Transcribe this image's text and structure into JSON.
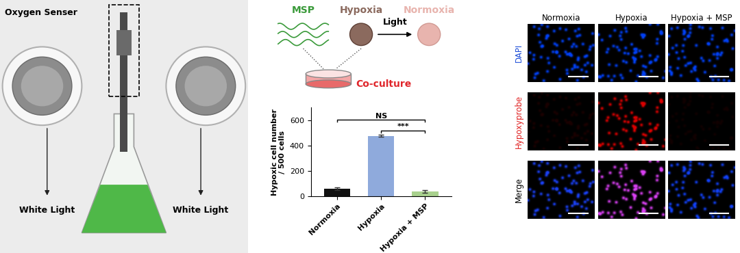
{
  "photo": {
    "label": "Oxygen Senser",
    "light_labels": [
      "White Light",
      "White Light"
    ]
  },
  "schematic": {
    "agent": {
      "text": "MSP",
      "color": "#3a9a3a"
    },
    "start": {
      "text": "Hypoxia",
      "color": "#8b6a5e"
    },
    "end": {
      "text": "Normoxia",
      "color": "#e8b4ae"
    },
    "arrow_label": "Light",
    "dish_label": {
      "text": "Co-culture",
      "color": "#e0262b"
    }
  },
  "chart_data": {
    "type": "bar",
    "categories": [
      "Normoxia",
      "Hypoxia",
      "Hypoxia + MSP"
    ],
    "values": [
      60,
      475,
      35
    ],
    "errors": [
      10,
      8,
      12
    ],
    "colors": [
      "#111111",
      "#8faadc",
      "#a9d18e"
    ],
    "y_label": "Hypoxic cell number\n/ 500 cells",
    "ylim": [
      0,
      700
    ],
    "yticks": [
      0,
      200,
      400,
      600
    ],
    "grid": false,
    "significance": [
      {
        "from": "Hypoxia",
        "to": "Hypoxia + MSP",
        "label": "***"
      },
      {
        "from": "Normoxia",
        "to": "Hypoxia + MSP",
        "label": "NS"
      }
    ]
  },
  "micrographs": {
    "columns": [
      "Normoxia",
      "Hypoxia",
      "Hypoxia + MSP"
    ],
    "rows": [
      {
        "label": "DAPI",
        "color": "#1f4fd8"
      },
      {
        "label": "Hypoxyprobe",
        "color": "#e02020"
      },
      {
        "label": "Merge",
        "color": "#000000"
      }
    ]
  }
}
